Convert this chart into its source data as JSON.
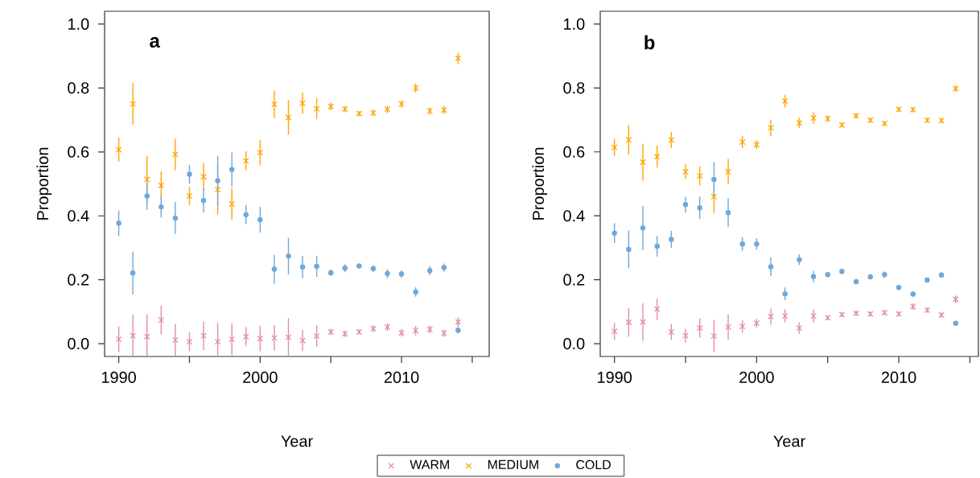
{
  "chart_data": [
    {
      "type": "scatter",
      "annotations": [
        "a"
      ],
      "xlabel": "Year",
      "ylabel": "Proportion",
      "xlim": [
        1989,
        2016.2
      ],
      "ylim": [
        -0.04,
        1.04
      ],
      "xticks": [
        1990,
        {
          "value": 1995,
          "label": null
        },
        2000,
        {
          "value": 2005,
          "label": null
        },
        2010,
        {
          "value": 2015,
          "label": null
        }
      ],
      "yticks": [
        {
          "value": 0,
          "label": "0.0"
        },
        {
          "value": 0.2,
          "label": "0.2"
        },
        {
          "value": 0.4,
          "label": "0.4"
        },
        {
          "value": 0.6,
          "label": "0.6"
        },
        {
          "value": 0.8,
          "label": "0.8"
        },
        {
          "value": 1,
          "label": "1.0"
        }
      ],
      "grid": false,
      "legend": "bottom",
      "x": [
        1990,
        1991,
        1992,
        1993,
        1994,
        1995,
        1996,
        1997,
        1998,
        1999,
        2000,
        2001,
        2002,
        2003,
        2004,
        2005,
        2006,
        2007,
        2008,
        2009,
        2010,
        2011,
        2012,
        2013,
        2014
      ],
      "series": [
        {
          "name": "WARM",
          "color": "#e08fa3",
          "marker": "cross",
          "values": [
            0.014,
            0.025,
            0.022,
            0.074,
            0.012,
            0.006,
            0.025,
            0.006,
            0.014,
            0.022,
            0.016,
            0.018,
            0.02,
            0.01,
            0.024,
            0.037,
            0.031,
            0.037,
            0.047,
            0.052,
            0.034,
            0.041,
            0.045,
            0.033,
            0.068
          ],
          "errors": [
            0.04,
            0.065,
            0.07,
            0.045,
            0.05,
            0.03,
            0.045,
            0.06,
            0.05,
            0.03,
            0.04,
            0.04,
            0.06,
            0.033,
            0.033,
            0.01,
            0.01,
            0.008,
            0.01,
            0.012,
            0.012,
            0.015,
            0.012,
            0.012,
            0.015
          ]
        },
        {
          "name": "MEDIUM",
          "color": "#ffa500",
          "marker": "cross",
          "values": [
            0.607,
            0.75,
            0.514,
            0.495,
            0.592,
            0.462,
            0.522,
            0.482,
            0.437,
            0.572,
            0.598,
            0.749,
            0.708,
            0.752,
            0.735,
            0.742,
            0.734,
            0.72,
            0.722,
            0.733,
            0.75,
            0.8,
            0.728,
            0.731,
            0.893
          ],
          "errors": [
            0.038,
            0.065,
            0.073,
            0.044,
            0.049,
            0.028,
            0.043,
            0.078,
            0.05,
            0.03,
            0.04,
            0.043,
            0.054,
            0.033,
            0.033,
            0.012,
            0.01,
            0.008,
            0.01,
            0.012,
            0.012,
            0.015,
            0.012,
            0.012,
            0.018
          ]
        },
        {
          "name": "COLD",
          "color": "#6fa8dc",
          "marker": "circle",
          "values": [
            0.377,
            0.221,
            0.462,
            0.428,
            0.393,
            0.53,
            0.448,
            0.51,
            0.545,
            0.404,
            0.388,
            0.233,
            0.274,
            0.24,
            0.242,
            0.222,
            0.236,
            0.243,
            0.235,
            0.219,
            0.218,
            0.162,
            0.229,
            0.238,
            0.042
          ],
          "errors": [
            0.04,
            0.067,
            0.043,
            0.033,
            0.05,
            0.03,
            0.038,
            0.078,
            0.053,
            0.03,
            0.04,
            0.045,
            0.057,
            0.035,
            0.033,
            0.01,
            0.012,
            0.006,
            0.01,
            0.014,
            0.012,
            0.015,
            0.015,
            0.013,
            0.01
          ]
        }
      ]
    },
    {
      "type": "scatter",
      "annotations": [
        "b"
      ],
      "xlabel": "Year",
      "ylabel": "Proportion",
      "xlim": [
        1989,
        2015.6
      ],
      "ylim": [
        -0.04,
        1.04
      ],
      "xticks": [
        1990,
        {
          "value": 1995,
          "label": null
        },
        2000,
        {
          "value": 2005,
          "label": null
        },
        2010,
        {
          "value": 2015,
          "label": null
        }
      ],
      "yticks": [
        {
          "value": 0,
          "label": "0.0"
        },
        {
          "value": 0.2,
          "label": "0.2"
        },
        {
          "value": 0.4,
          "label": "0.4"
        },
        {
          "value": 0.6,
          "label": "0.6"
        },
        {
          "value": 0.8,
          "label": "0.8"
        },
        {
          "value": 1,
          "label": "1.0"
        }
      ],
      "grid": false,
      "x": [
        1990,
        1991,
        1992,
        1993,
        1994,
        1995,
        1996,
        1997,
        1998,
        1999,
        2000,
        2001,
        2002,
        2003,
        2004,
        2005,
        2006,
        2007,
        2008,
        2009,
        2010,
        2011,
        2012,
        2013,
        2014
      ],
      "series": [
        {
          "color": "#e08fa3",
          "marker": "cross",
          "values": [
            0.039,
            0.067,
            0.068,
            0.108,
            0.037,
            0.025,
            0.049,
            0.024,
            0.052,
            0.054,
            0.064,
            0.085,
            0.087,
            0.049,
            0.087,
            0.081,
            0.091,
            0.095,
            0.093,
            0.097,
            0.093,
            0.116,
            0.105,
            0.09,
            0.139
          ],
          "errors": [
            0.027,
            0.045,
            0.058,
            0.034,
            0.025,
            0.022,
            0.03,
            0.051,
            0.04,
            0.019,
            0.014,
            0.025,
            0.02,
            0.018,
            0.02,
            0.008,
            0.008,
            0.008,
            0.008,
            0.008,
            0.008,
            0.01,
            0.008,
            0.008,
            0.012
          ]
        },
        {
          "color": "#ffa500",
          "marker": "cross",
          "values": [
            0.614,
            0.638,
            0.568,
            0.585,
            0.637,
            0.538,
            0.525,
            0.46,
            0.538,
            0.631,
            0.623,
            0.675,
            0.759,
            0.691,
            0.706,
            0.704,
            0.684,
            0.713,
            0.699,
            0.689,
            0.733,
            0.732,
            0.699,
            0.698,
            0.798
          ],
          "errors": [
            0.027,
            0.046,
            0.058,
            0.034,
            0.025,
            0.023,
            0.03,
            0.051,
            0.04,
            0.019,
            0.014,
            0.025,
            0.02,
            0.016,
            0.018,
            0.01,
            0.008,
            0.008,
            0.008,
            0.008,
            0.008,
            0.008,
            0.008,
            0.008,
            0.01
          ]
        },
        {
          "color": "#6fa8dc",
          "marker": "circle",
          "values": [
            0.346,
            0.295,
            0.362,
            0.305,
            0.326,
            0.435,
            0.425,
            0.514,
            0.41,
            0.312,
            0.312,
            0.241,
            0.156,
            0.263,
            0.21,
            0.216,
            0.226,
            0.194,
            0.209,
            0.216,
            0.176,
            0.155,
            0.199,
            0.215,
            0.064
          ],
          "errors": [
            0.031,
            0.059,
            0.069,
            0.032,
            0.027,
            0.025,
            0.035,
            0.054,
            0.045,
            0.021,
            0.018,
            0.029,
            0.02,
            0.017,
            0.018,
            0.006,
            0.008,
            0.004,
            0.006,
            0.01,
            0.006,
            0.008,
            0.008,
            0.006,
            0.008
          ]
        }
      ]
    }
  ]
}
